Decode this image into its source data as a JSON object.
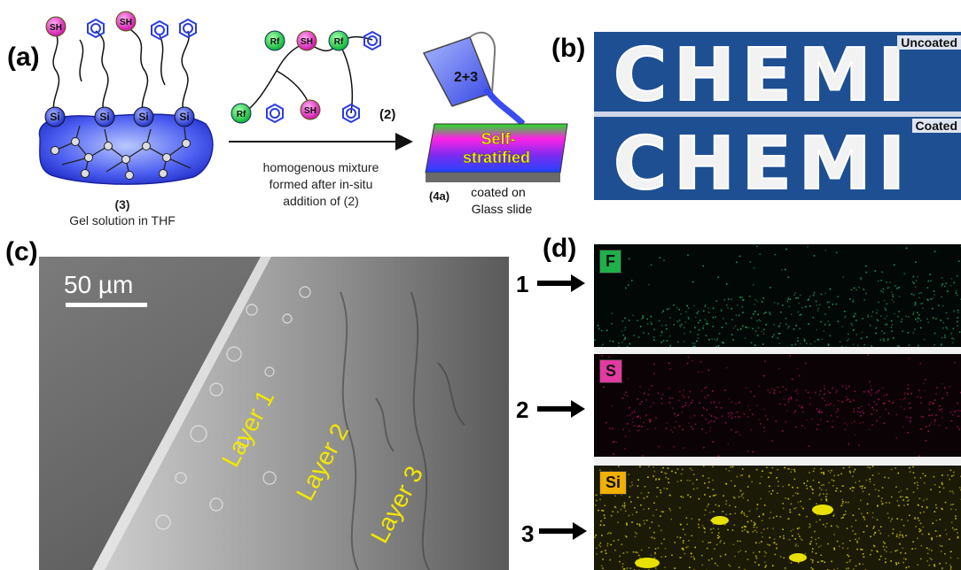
{
  "panel_a": {
    "label": "(a)",
    "gel_number": "(3)",
    "gel_caption": "Gel solution in THF",
    "compound2_number": "(2)",
    "arrow_caption": "homogenous mixture formed after in-situ addition of (2)",
    "beaker_text": "2+3",
    "slab_text_line1": "Self-",
    "slab_text_line2": "stratified",
    "coated_number": "(4a)",
    "coated_caption_line1": "coated on",
    "coated_caption_line2": "Glass slide",
    "sh_label": "SH",
    "si_label": "Si",
    "rf_label": "Rf"
  },
  "panel_b": {
    "label": "(b)",
    "word": "CHEMI",
    "top_tag": "Uncoated",
    "bottom_tag": "Coated"
  },
  "panel_c": {
    "label": "(c)",
    "scale_bar": "50 µm",
    "layers": [
      "Layer 1",
      "Layer 2",
      "Layer 3"
    ]
  },
  "panel_d": {
    "label": "(d)",
    "maps": [
      {
        "element": "F",
        "row": "1",
        "tag_color": "#1fb04a",
        "dot_color": "#1aa860"
      },
      {
        "element": "S",
        "row": "2",
        "tag_color": "#e23aa0",
        "dot_color": "#b0105a"
      },
      {
        "element": "Si",
        "row": "3",
        "tag_color": "#f0b000",
        "dot_color": "#d8d000"
      }
    ]
  }
}
